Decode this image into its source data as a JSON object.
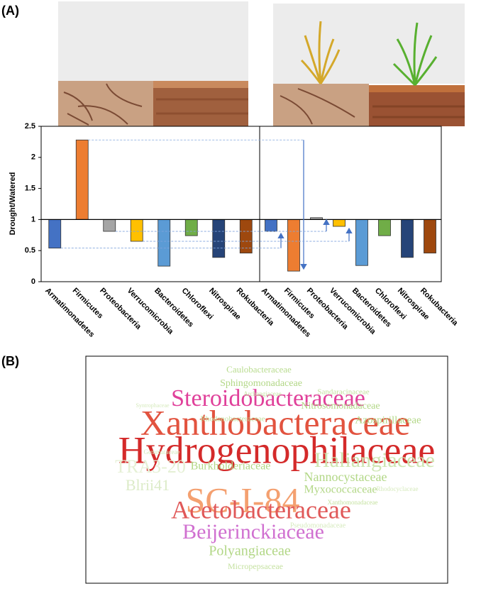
{
  "panels": {
    "a": "(A)",
    "b": "(B)"
  },
  "chart_data": [
    {
      "type": "bar",
      "ylabel": "Drought/Watered",
      "ylim": [
        0,
        2.5
      ],
      "yticks": [
        0,
        0.5,
        1,
        1.5,
        2,
        2.5
      ],
      "baseline": 1,
      "categories": [
        "Armatimonadetes",
        "Firmicutes",
        "Proteobacteria",
        "Verrucomicrobia",
        "Bacteroidetes",
        "Chloroflexi",
        "Nitrospirae",
        "Rokubacteria"
      ],
      "values": [
        0.54,
        2.28,
        0.81,
        0.65,
        0.25,
        0.74,
        0.39,
        0.46
      ],
      "colors": [
        "#4472c4",
        "#ed7d31",
        "#a5a5a5",
        "#ffc000",
        "#5b9bd5",
        "#70ad47",
        "#264478",
        "#9e480e"
      ]
    },
    {
      "type": "bar",
      "ylim": [
        0,
        2.5
      ],
      "baseline": 1,
      "categories": [
        "Armatimonadetes",
        "Firmicutes",
        "Proteobacteria",
        "Verrucomicrobia",
        "Bacteroidetes",
        "Chloroflexi",
        "Nitrospirae",
        "Rokubacteria"
      ],
      "values": [
        0.81,
        0.17,
        1.03,
        0.89,
        0.26,
        0.74,
        0.39,
        0.46
      ],
      "colors": [
        "#4472c4",
        "#ed7d31",
        "#a5a5a5",
        "#ffc000",
        "#5b9bd5",
        "#70ad47",
        "#264478",
        "#9e480e"
      ]
    }
  ],
  "word_cloud": {
    "words": [
      {
        "text": "Caulobacteraceae",
        "color": "#b9dc8f"
      },
      {
        "text": "Sphingomonadaceae",
        "color": "#b2d786"
      },
      {
        "text": "Sandaracinaceae",
        "color": "#c3e09e"
      },
      {
        "text": "Syntrophaceae",
        "color": "#d6eabd"
      },
      {
        "text": "Steroidobacteraceae",
        "color": "#e0409a"
      },
      {
        "text": "Archangiaceae",
        "color": "#c6e2a2"
      },
      {
        "text": "Nitrosomonadaceae",
        "color": "#b2d786"
      },
      {
        "text": "Xanthobacteraceae",
        "color": "#e2533f"
      },
      {
        "text": "Rhodanobacteraceae",
        "color": "#c3e09e"
      },
      {
        "text": "Azospirillaceae",
        "color": "#b2d786"
      },
      {
        "text": "Hydrogenophilaceae",
        "color": "#d42a2a"
      },
      {
        "text": "Gemmataceae",
        "color": "#d6eabd"
      },
      {
        "text": "Haliangiaceae",
        "color": "#cde6b2"
      },
      {
        "text": "Burkholderiaceae",
        "color": "#b2d786"
      },
      {
        "text": "TRA3-20",
        "color": "#e5f0d5"
      },
      {
        "text": "Nannocystaceae",
        "color": "#b2d786"
      },
      {
        "text": "Rhodocyclaceae",
        "color": "#d6eabd"
      },
      {
        "text": "Blrii41",
        "color": "#dcebc8"
      },
      {
        "text": "SC-I-84",
        "color": "#f4a070"
      },
      {
        "text": "Myxococcaceae",
        "color": "#b2d786"
      },
      {
        "text": "Xanthomonadaceae",
        "color": "#c6e2a2"
      },
      {
        "text": "Acetobacteraceae",
        "color": "#e05858"
      },
      {
        "text": "Pseudomonadaceae",
        "color": "#d6eabd"
      },
      {
        "text": "Beijerinckiaceae",
        "color": "#d070d0"
      },
      {
        "text": "Polyangiaceae",
        "color": "#b2d786"
      },
      {
        "text": "Micropepsaceae",
        "color": "#c6e2a2"
      }
    ]
  }
}
